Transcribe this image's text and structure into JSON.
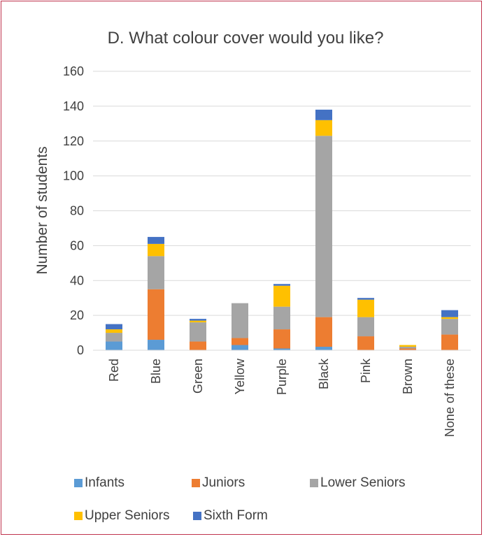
{
  "chart_data": {
    "type": "bar",
    "stacked": true,
    "title": "D. What colour cover would you like?",
    "xlabel": "",
    "ylabel": "Number of students",
    "ylim": [
      0,
      160
    ],
    "yticks": [
      0,
      20,
      40,
      60,
      80,
      100,
      120,
      140,
      160
    ],
    "grid": true,
    "legend_position": "bottom",
    "categories": [
      "Red",
      "Blue",
      "Green",
      "Yellow",
      "Purple",
      "Black",
      "Pink",
      "Brown",
      "None of these"
    ],
    "series": [
      {
        "name": "Infants",
        "color": "#5b9bd5",
        "values": [
          5,
          6,
          0,
          3,
          1,
          2,
          0,
          0,
          0
        ]
      },
      {
        "name": "Juniors",
        "color": "#ed7d31",
        "values": [
          0,
          29,
          5,
          4,
          11,
          17,
          8,
          1,
          9
        ]
      },
      {
        "name": "Lower Seniors",
        "color": "#a5a5a5",
        "values": [
          5,
          19,
          11,
          20,
          13,
          104,
          11,
          1,
          9
        ]
      },
      {
        "name": "Upper Seniors",
        "color": "#ffc000",
        "values": [
          2,
          7,
          1,
          0,
          12,
          9,
          10,
          1,
          1
        ]
      },
      {
        "name": "Sixth Form",
        "color": "#4472c4",
        "values": [
          3,
          4,
          1,
          0,
          1,
          6,
          1,
          0,
          4
        ]
      }
    ]
  }
}
